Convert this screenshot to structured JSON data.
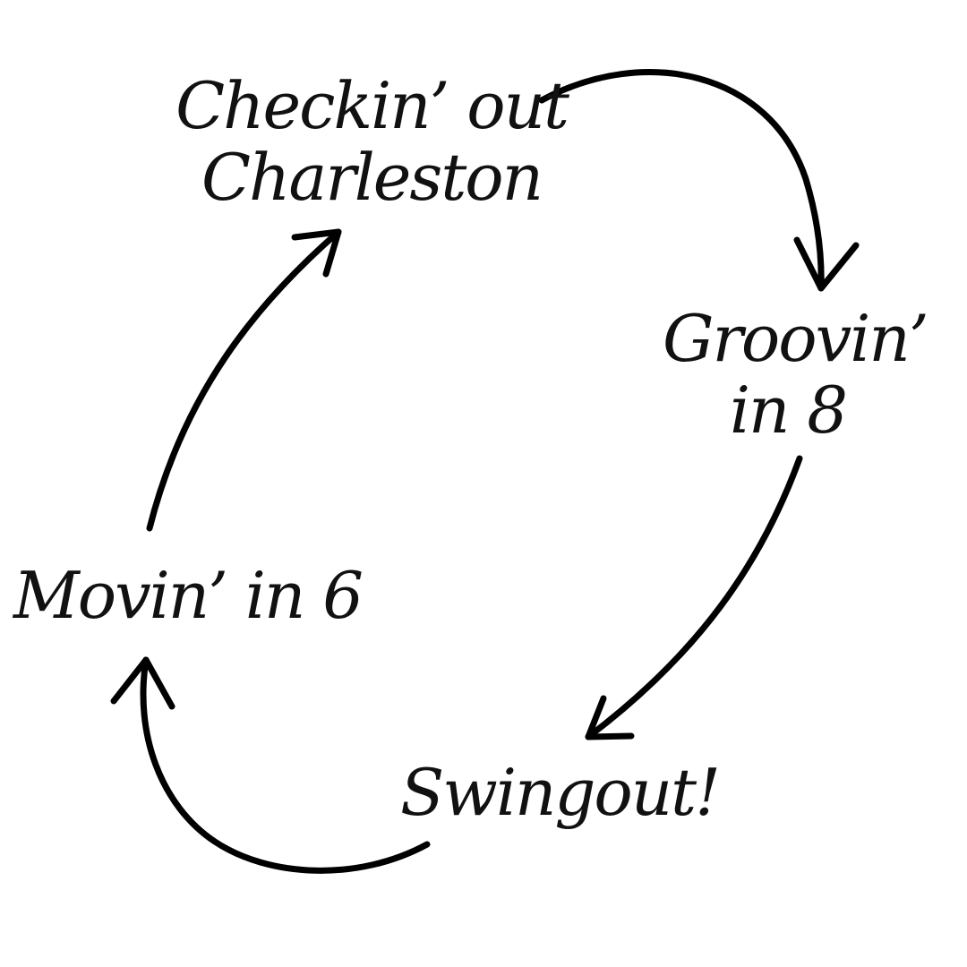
{
  "diagram": {
    "type": "cycle",
    "direction": "clockwise",
    "stroke_color": "#000000",
    "text_color": "#111111",
    "background": "#ffffff",
    "nodes": [
      {
        "id": "top",
        "lines": [
          "Checkin’ out",
          "Charleston"
        ]
      },
      {
        "id": "right",
        "lines": [
          "Groovin’",
          "in 8"
        ]
      },
      {
        "id": "bottom",
        "lines": [
          "Swingout!"
        ]
      },
      {
        "id": "left",
        "lines": [
          "Movin’ in 6"
        ]
      }
    ],
    "edges": [
      {
        "from": "top",
        "to": "right"
      },
      {
        "from": "right",
        "to": "bottom"
      },
      {
        "from": "bottom",
        "to": "left"
      },
      {
        "from": "left",
        "to": "top"
      }
    ]
  }
}
